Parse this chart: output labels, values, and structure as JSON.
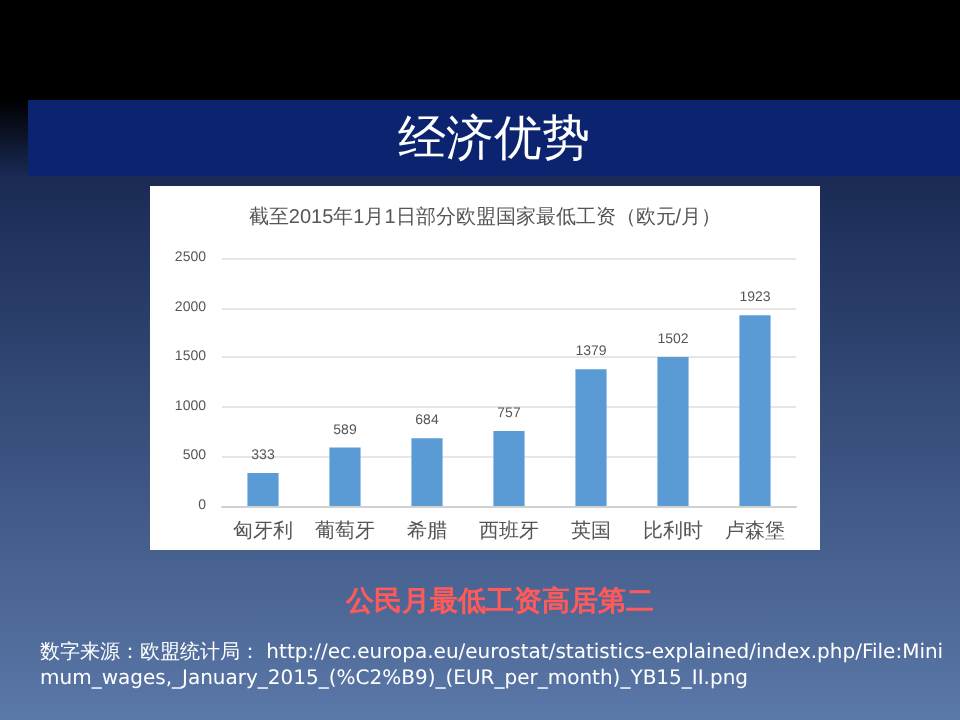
{
  "chart_data": {
    "type": "bar",
    "title": "经济优势",
    "subtitle": "截至2015年1月1日部分欧盟国家最低工资（欧元/月）",
    "categories": [
      "匈牙利",
      "葡萄牙",
      "希腊",
      "西班牙",
      "英国",
      "比利时",
      "卢森堡"
    ],
    "values": [
      333,
      589,
      684,
      757,
      1379,
      1502,
      1923
    ],
    "color": "#5b9bd5",
    "ylim": [
      0,
      2500
    ],
    "yticks": [
      0,
      500,
      1000,
      1500,
      2000,
      2500
    ],
    "grid": "y",
    "data_labels": true,
    "annotations": [
      "公民月最低工资高居第二",
      "数字来源：欧盟统计局： http://ec.europa.eu/eurostat/statistics-explained/index.php/File:Minimum_wages,_January_2015_(%C2%B9)_(EUR_per_month)_YB15_II.png"
    ]
  }
}
